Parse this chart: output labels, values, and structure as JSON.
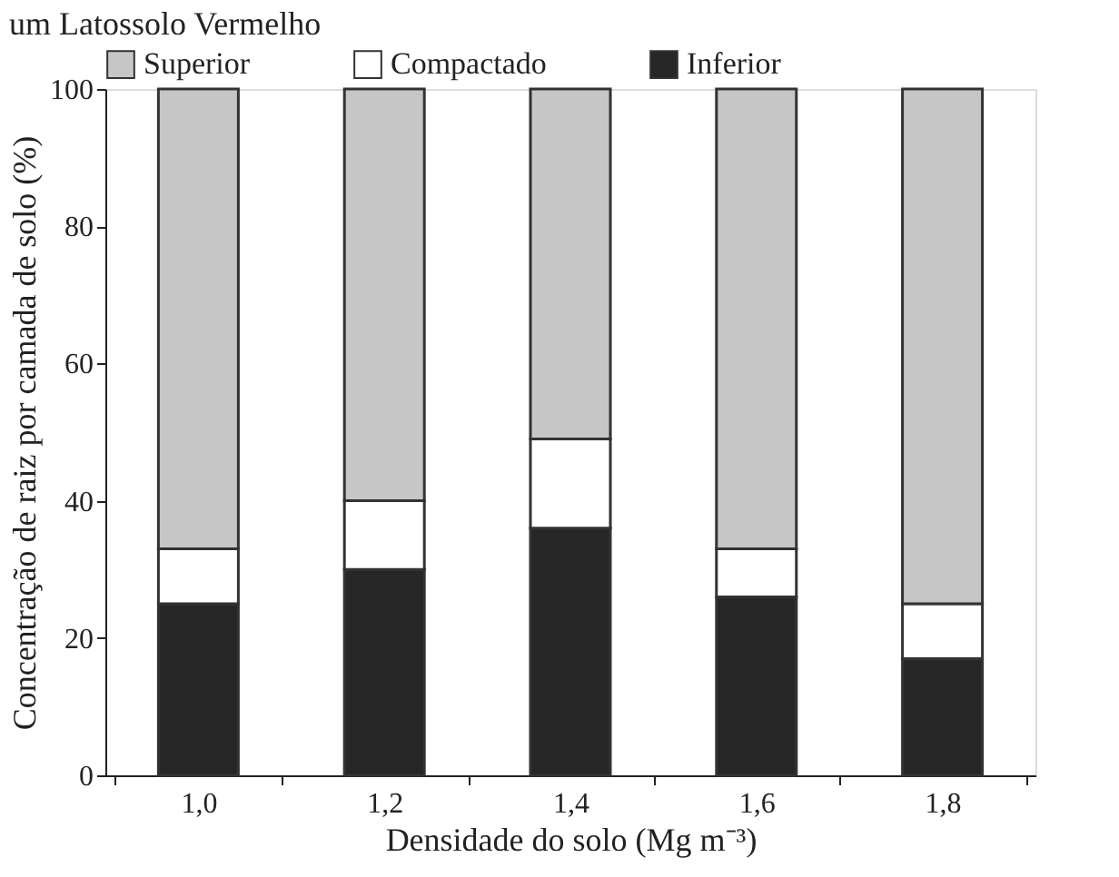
{
  "chart_data": {
    "type": "bar",
    "stacked": true,
    "title": "um Latossolo Vermelho",
    "xlabel": "Densidade do solo (Mg m⁻³)",
    "ylabel": "Concentração de raiz por camada de solo (%)",
    "categories": [
      "1,0",
      "1,2",
      "1,4",
      "1,6",
      "1,8"
    ],
    "series": [
      {
        "name": "Inferior",
        "color": "#262626",
        "values": [
          25,
          30,
          36,
          26,
          17
        ]
      },
      {
        "name": "Compactado",
        "color": "#ffffff",
        "values": [
          8,
          10,
          13,
          7,
          8
        ]
      },
      {
        "name": "Superior",
        "color": "#c6c6c6",
        "values": [
          67,
          60,
          51,
          67,
          75
        ]
      }
    ],
    "ylim": [
      0,
      100
    ],
    "yticks": [
      0,
      20,
      40,
      60,
      80,
      100
    ],
    "grid": false,
    "legend": "top"
  }
}
